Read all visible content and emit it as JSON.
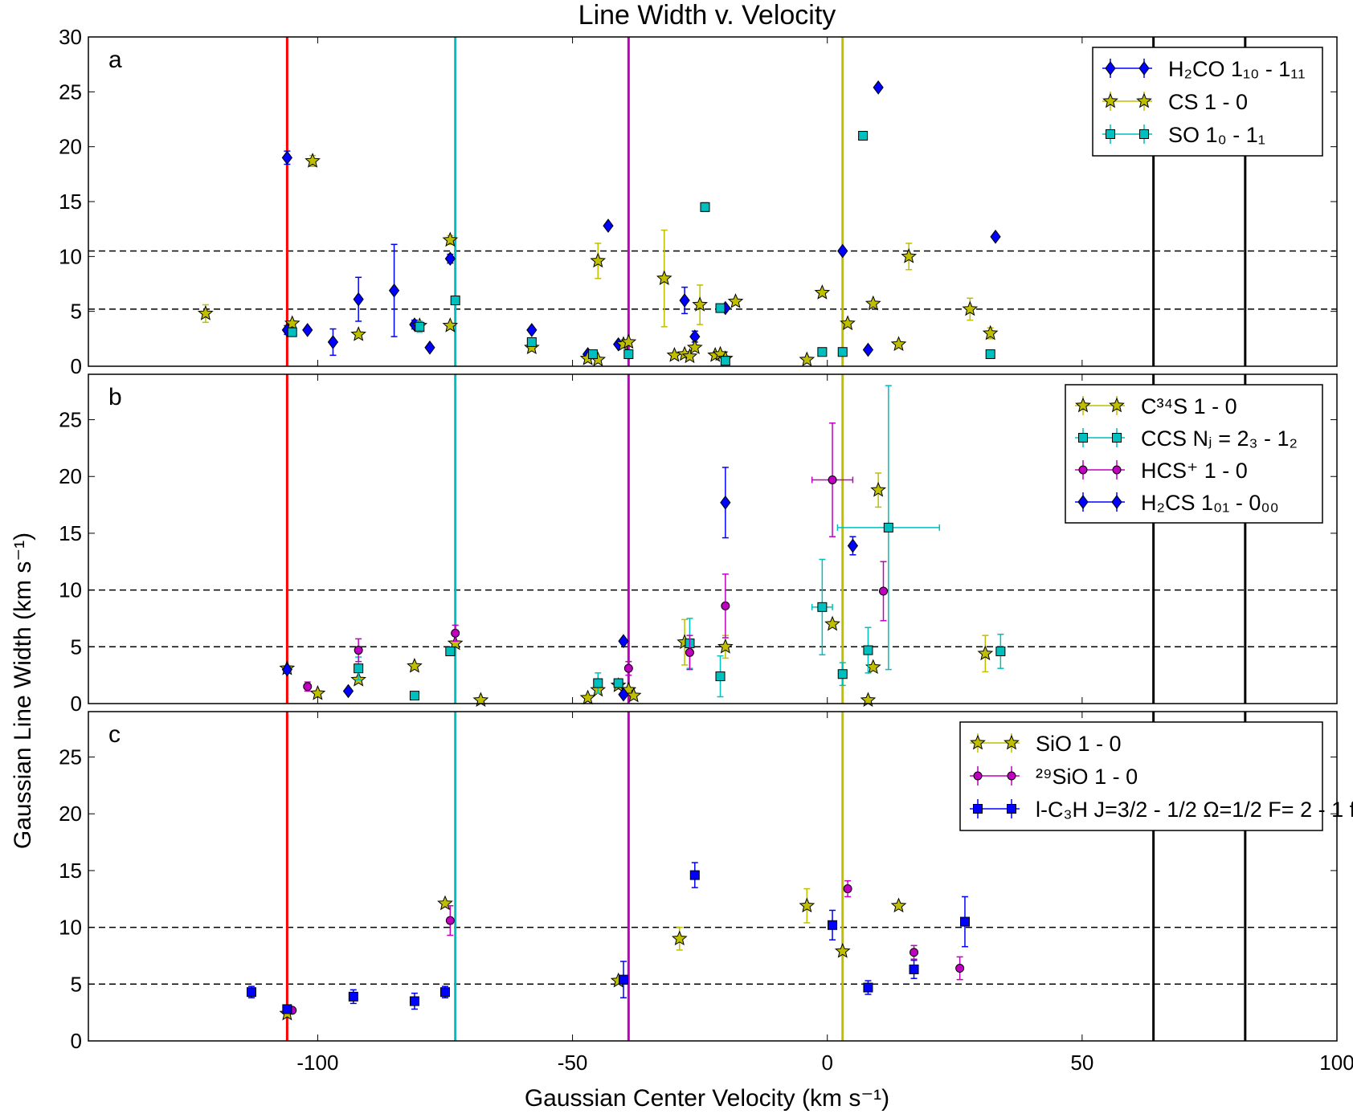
{
  "chart_data": {
    "type": "scatter",
    "title": "Line Width v. Velocity",
    "xlabel": "Gaussian Center Velocity (km s⁻¹)",
    "ylabel": "Gaussian Line Width (km s⁻¹)",
    "xlim": [
      -145,
      100
    ],
    "x_ticks": [
      -100,
      -50,
      0,
      50,
      100
    ],
    "x_tick_labels": [
      "-100",
      "-50",
      "0",
      "50",
      "100"
    ],
    "vertical_lines": [
      {
        "x": -106,
        "color": "#ff0000"
      },
      {
        "x": -73,
        "color": "#00bfbf"
      },
      {
        "x": -39,
        "color": "#bf00bf"
      },
      {
        "x": 3,
        "color": "#bfbf00"
      },
      {
        "x": 64,
        "color": "#000000"
      },
      {
        "x": 82,
        "color": "#000000"
      }
    ],
    "panels": [
      {
        "letter": "a",
        "ylim": [
          0,
          30
        ],
        "y_ticks": [
          0,
          5,
          10,
          15,
          20,
          25,
          30
        ],
        "dashed_lines": [
          5.2,
          10.5
        ],
        "legend": [
          {
            "label": "H₂CO 1₁₀ - 1₁₁",
            "color": "#0000ff",
            "marker": "diamond"
          },
          {
            "label": "CS 1 - 0",
            "color": "#bfbf00",
            "marker": "star"
          },
          {
            "label": "SO 1₀ - 1₁",
            "color": "#00bfbf",
            "marker": "square"
          }
        ],
        "series": [
          {
            "name": "H2CO 1_10 - 1_11",
            "color": "#0000ff",
            "marker": "diamond",
            "points": [
              {
                "x": -106,
                "y": 19.0,
                "yerr": 0.6
              },
              {
                "x": -106,
                "y": 3.3,
                "yerr": 0.4
              },
              {
                "x": -102,
                "y": 3.3
              },
              {
                "x": -97,
                "y": 2.2,
                "yerr": 1.2
              },
              {
                "x": -92,
                "y": 6.1,
                "yerr": 2.0
              },
              {
                "x": -85,
                "y": 6.9,
                "yerr": 4.2
              },
              {
                "x": -81,
                "y": 3.8,
                "yerr": 0.4
              },
              {
                "x": -78,
                "y": 1.7
              },
              {
                "x": -74,
                "y": 9.8,
                "yerr": 0.4
              },
              {
                "x": -58,
                "y": 3.3
              },
              {
                "x": -47,
                "y": 1.1
              },
              {
                "x": -43,
                "y": 12.8
              },
              {
                "x": -41,
                "y": 2.0
              },
              {
                "x": -28,
                "y": 6.0,
                "yerr": 1.2
              },
              {
                "x": -26,
                "y": 2.7,
                "yerr": 0.5
              },
              {
                "x": -20,
                "y": 5.3
              },
              {
                "x": 3,
                "y": 10.5
              },
              {
                "x": 8,
                "y": 1.5
              },
              {
                "x": 10,
                "y": 25.4
              },
              {
                "x": 33,
                "y": 11.8
              }
            ]
          },
          {
            "name": "CS 1 - 0",
            "color": "#bfbf00",
            "marker": "star",
            "points": [
              {
                "x": -122,
                "y": 4.8,
                "yerr": 0.8
              },
              {
                "x": -105,
                "y": 3.9
              },
              {
                "x": -101,
                "y": 18.7,
                "yerr": 0.5
              },
              {
                "x": -92,
                "y": 2.9
              },
              {
                "x": -80,
                "y": 3.7
              },
              {
                "x": -74,
                "y": 11.5,
                "yerr": 0.4
              },
              {
                "x": -74,
                "y": 3.7
              },
              {
                "x": -58,
                "y": 1.7
              },
              {
                "x": -47,
                "y": 0.7
              },
              {
                "x": -45,
                "y": 9.6,
                "yerr": 1.6
              },
              {
                "x": -45,
                "y": 0.6
              },
              {
                "x": -40,
                "y": 2.0
              },
              {
                "x": -39,
                "y": 2.2
              },
              {
                "x": -32,
                "y": 8.0,
                "yerr": 4.4
              },
              {
                "x": -30,
                "y": 1.0
              },
              {
                "x": -28,
                "y": 1.1
              },
              {
                "x": -27,
                "y": 0.9
              },
              {
                "x": -26,
                "y": 1.7
              },
              {
                "x": -25,
                "y": 5.6,
                "yerr": 1.8
              },
              {
                "x": -22,
                "y": 1.0
              },
              {
                "x": -21,
                "y": 1.1
              },
              {
                "x": -20,
                "y": 0.7
              },
              {
                "x": -18,
                "y": 5.9
              },
              {
                "x": -4,
                "y": 0.6
              },
              {
                "x": -1,
                "y": 6.7
              },
              {
                "x": 4,
                "y": 3.9
              },
              {
                "x": 9,
                "y": 5.7
              },
              {
                "x": 14,
                "y": 2.0
              },
              {
                "x": 16,
                "y": 10.0,
                "yerr": 1.2
              },
              {
                "x": 28,
                "y": 5.2,
                "yerr": 1.0
              },
              {
                "x": 32,
                "y": 3.0,
                "yerr": 0.5
              }
            ]
          },
          {
            "name": "SO 1_0 - 1_1",
            "color": "#00bfbf",
            "marker": "square",
            "points": [
              {
                "x": -105,
                "y": 3.1
              },
              {
                "x": -80,
                "y": 3.6,
                "yerr": 0.5
              },
              {
                "x": -73,
                "y": 6.0
              },
              {
                "x": -58,
                "y": 2.2
              },
              {
                "x": -46,
                "y": 1.1
              },
              {
                "x": -39,
                "y": 1.1
              },
              {
                "x": -24,
                "y": 14.5,
                "yerr": 0.4
              },
              {
                "x": -21,
                "y": 5.3
              },
              {
                "x": -20,
                "y": 0.5
              },
              {
                "x": -1,
                "y": 1.3
              },
              {
                "x": 3,
                "y": 1.3
              },
              {
                "x": 7,
                "y": 21.0
              },
              {
                "x": 32,
                "y": 1.1
              }
            ]
          }
        ]
      },
      {
        "letter": "b",
        "ylim": [
          0,
          29
        ],
        "y_ticks": [
          0,
          5,
          10,
          15,
          20,
          25
        ],
        "dashed_lines": [
          5.0,
          10.0
        ],
        "legend": [
          {
            "label": "C³⁴S 1 - 0",
            "color": "#bfbf00",
            "marker": "star"
          },
          {
            "label": "CCS Nⱼ = 2₃ - 1₂",
            "color": "#00bfbf",
            "marker": "square"
          },
          {
            "label": "HCS⁺ 1 - 0",
            "color": "#bf00bf",
            "marker": "circle"
          },
          {
            "label": "H₂CS 1₀₁ - 0₀₀",
            "color": "#0000ff",
            "marker": "diamond"
          }
        ],
        "series": [
          {
            "name": "C34S 1 - 0",
            "color": "#bfbf00",
            "marker": "star",
            "points": [
              {
                "x": -106,
                "y": 3.1
              },
              {
                "x": -100,
                "y": 0.9
              },
              {
                "x": -92,
                "y": 2.1
              },
              {
                "x": -81,
                "y": 3.3
              },
              {
                "x": -73,
                "y": 5.3
              },
              {
                "x": -68,
                "y": 0.3
              },
              {
                "x": -47,
                "y": 0.5
              },
              {
                "x": -45,
                "y": 1.2
              },
              {
                "x": -41,
                "y": 1.6
              },
              {
                "x": -39,
                "y": 1.2
              },
              {
                "x": -38,
                "y": 0.7
              },
              {
                "x": -28,
                "y": 5.4,
                "yerr": 2.0
              },
              {
                "x": -20,
                "y": 5.0,
                "yerr": 1.0
              },
              {
                "x": 1,
                "y": 7.0
              },
              {
                "x": 9,
                "y": 3.2
              },
              {
                "x": 10,
                "y": 18.8,
                "yerr": 1.5
              },
              {
                "x": 8,
                "y": 0.3
              },
              {
                "x": 31,
                "y": 4.4,
                "yerr": 1.6
              }
            ]
          },
          {
            "name": "CCS N_J = 2_3 - 1_2",
            "color": "#00bfbf",
            "marker": "square",
            "points": [
              {
                "x": -92,
                "y": 3.1,
                "yerr": 1.0
              },
              {
                "x": -81,
                "y": 0.7
              },
              {
                "x": -74,
                "y": 4.6
              },
              {
                "x": -45,
                "y": 1.8,
                "yerr": 0.9
              },
              {
                "x": -41,
                "y": 1.8
              },
              {
                "x": -27,
                "y": 5.3,
                "yerr": 2.2
              },
              {
                "x": -21,
                "y": 2.4,
                "yerr": 1.8
              },
              {
                "x": -1,
                "y": 8.5,
                "xerr": 2.0,
                "yerr": 4.2
              },
              {
                "x": 3,
                "y": 2.6,
                "yerr": 1.0
              },
              {
                "x": 8,
                "y": 4.7,
                "yerr": 2.0
              },
              {
                "x": 12,
                "y": 15.5,
                "xerr": 10.0,
                "yerr": 12.5
              },
              {
                "x": 34,
                "y": 4.6,
                "yerr": 1.5
              }
            ]
          },
          {
            "name": "HCS+ 1 - 0",
            "color": "#bf00bf",
            "marker": "circle",
            "points": [
              {
                "x": -102,
                "y": 1.5,
                "yerr": 0.4
              },
              {
                "x": -92,
                "y": 4.7,
                "yerr": 1.0
              },
              {
                "x": -73,
                "y": 6.2,
                "yerr": 0.7
              },
              {
                "x": -39,
                "y": 3.1,
                "yerr": 0.6
              },
              {
                "x": -27,
                "y": 4.5,
                "yerr": 1.5
              },
              {
                "x": -20,
                "y": 8.6,
                "yerr": 2.8
              },
              {
                "x": 1,
                "y": 19.7,
                "xerr": 4.0,
                "yerr": 5.0
              },
              {
                "x": 11,
                "y": 9.9,
                "yerr": 2.6
              }
            ]
          },
          {
            "name": "H2CS 1_01 - 0_00",
            "color": "#0000ff",
            "marker": "diamond",
            "points": [
              {
                "x": -106,
                "y": 3.0
              },
              {
                "x": -94,
                "y": 1.1
              },
              {
                "x": -40,
                "y": 5.5
              },
              {
                "x": -40,
                "y": 0.8
              },
              {
                "x": -20,
                "y": 17.7,
                "yerr": 3.1
              },
              {
                "x": 5,
                "y": 13.9,
                "yerr": 0.8
              }
            ]
          }
        ]
      },
      {
        "letter": "c",
        "ylim": [
          0,
          29
        ],
        "y_ticks": [
          0,
          5,
          10,
          15,
          20,
          25
        ],
        "dashed_lines": [
          5.0,
          10.0
        ],
        "legend": [
          {
            "label": "SiO 1 - 0",
            "color": "#bfbf00",
            "marker": "star"
          },
          {
            "label": "²⁹SiO 1 - 0",
            "color": "#bf00bf",
            "marker": "circle"
          },
          {
            "label": "l-C₃H J=3/2 - 1/2 Ω=1/2 F= 2 - 1 f",
            "color": "#0000ff",
            "marker": "square"
          }
        ],
        "series": [
          {
            "name": "SiO 1 - 0",
            "color": "#bfbf00",
            "marker": "star",
            "points": [
              {
                "x": -106,
                "y": 2.4
              },
              {
                "x": -75,
                "y": 12.1
              },
              {
                "x": -41,
                "y": 5.3
              },
              {
                "x": -29,
                "y": 9.0,
                "yerr": 1.0
              },
              {
                "x": -4,
                "y": 11.9,
                "yerr": 1.5
              },
              {
                "x": 3,
                "y": 7.9
              },
              {
                "x": 14,
                "y": 11.9
              }
            ]
          },
          {
            "name": "29SiO 1 - 0",
            "color": "#bf00bf",
            "marker": "circle",
            "points": [
              {
                "x": -105,
                "y": 2.7
              },
              {
                "x": -74,
                "y": 10.6,
                "yerr": 1.3
              },
              {
                "x": 4,
                "y": 13.4,
                "yerr": 0.7
              },
              {
                "x": 17,
                "y": 7.8,
                "yerr": 0.6
              },
              {
                "x": 26,
                "y": 6.4,
                "yerr": 1.0
              }
            ]
          },
          {
            "name": "l-C3H J=3/2 - 1/2 Omega=1/2 F= 2 - 1 f",
            "color": "#0000ff",
            "marker": "square",
            "points": [
              {
                "x": -113,
                "y": 4.3,
                "yerr": 0.5
              },
              {
                "x": -106,
                "y": 2.8
              },
              {
                "x": -93,
                "y": 3.9,
                "yerr": 0.6
              },
              {
                "x": -81,
                "y": 3.5,
                "yerr": 0.7
              },
              {
                "x": -75,
                "y": 4.3,
                "yerr": 0.5
              },
              {
                "x": -40,
                "y": 5.4,
                "yerr": 1.6
              },
              {
                "x": -26,
                "y": 14.6,
                "yerr": 1.1
              },
              {
                "x": 1,
                "y": 10.2,
                "yerr": 1.3
              },
              {
                "x": 8,
                "y": 4.7,
                "yerr": 0.6
              },
              {
                "x": 17,
                "y": 6.3,
                "yerr": 0.8
              },
              {
                "x": 27,
                "y": 10.5,
                "yerr": 2.2
              }
            ]
          }
        ]
      }
    ]
  }
}
